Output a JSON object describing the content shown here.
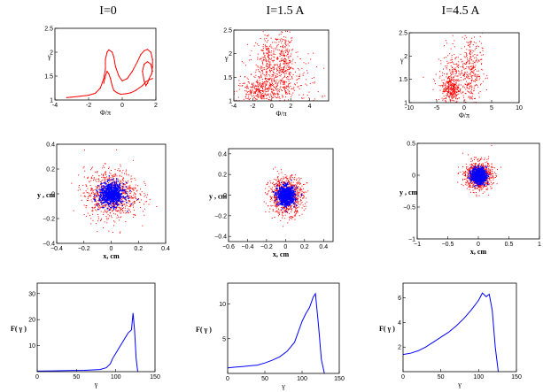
{
  "chart_data": [
    {
      "id": "phase-0",
      "type": "scatter",
      "title": "I=0",
      "xlabel": "Φ/π",
      "ylabel": "γ",
      "xlim": [
        -4,
        2
      ],
      "ylim": [
        1,
        2.5
      ],
      "xticks": [
        -4,
        -2,
        0,
        2
      ],
      "yticks": [
        1,
        1.5,
        2,
        2.5
      ],
      "xticklabels": [
        "-4",
        "-2",
        "0",
        "2"
      ],
      "yticklabels": [
        "1",
        "1.5",
        "2",
        "2.5"
      ],
      "color": "#ff0000",
      "series": [
        {
          "x": [
            -3.3,
            -3.0,
            -2.5,
            -2.0,
            -1.6,
            -1.3,
            -1.1,
            -1.0,
            -1.0,
            -0.9,
            -0.8,
            -0.6,
            -0.5,
            -0.4,
            -0.2,
            0.0,
            0.3,
            0.6,
            0.9,
            1.1,
            1.3,
            1.5,
            1.7,
            1.8,
            1.8,
            1.75,
            1.6,
            1.5,
            1.4,
            1.3,
            1.2,
            1.3,
            1.5,
            1.7,
            1.8
          ],
          "y": [
            1.05,
            1.06,
            1.08,
            1.1,
            1.14,
            1.25,
            1.45,
            1.65,
            1.85,
            2.0,
            2.05,
            2.0,
            1.9,
            1.7,
            1.5,
            1.4,
            1.45,
            1.6,
            1.8,
            1.95,
            2.03,
            2.06,
            2.0,
            1.85,
            1.7,
            1.55,
            1.45,
            1.35,
            1.3,
            1.4,
            1.6,
            1.75,
            1.8,
            1.75,
            1.6
          ]
        },
        {
          "x": [
            -1.1,
            -1.0,
            -0.9,
            -0.8,
            -0.7,
            -0.6,
            -0.5,
            -0.3,
            -0.1,
            0.2,
            0.5,
            0.8,
            1.0,
            1.2,
            1.4,
            1.6,
            1.8
          ],
          "y": [
            1.35,
            1.5,
            1.6,
            1.55,
            1.45,
            1.3,
            1.2,
            1.15,
            1.12,
            1.13,
            1.15,
            1.2,
            1.25,
            1.3,
            1.38,
            1.42,
            1.45
          ]
        }
      ]
    },
    {
      "id": "phase-1",
      "type": "scatter",
      "title": "I=1.5 A",
      "xlabel": "Φ/π",
      "ylabel": "γ",
      "xlim": [
        -4,
        6
      ],
      "ylim": [
        1,
        2.5
      ],
      "xticks": [
        -4,
        -2,
        0,
        2,
        4
      ],
      "yticks": [
        1,
        1.5,
        2,
        2.5
      ],
      "xticklabels": [
        "-4",
        "-2",
        "0",
        "2",
        "4"
      ],
      "yticklabels": [
        "1",
        "1.5",
        "2",
        "2.5"
      ],
      "color": "#ff0000",
      "clusters": [
        {
          "cx": -0.5,
          "cy": 1.8,
          "sx": 0.6,
          "sy": 0.35
        },
        {
          "cx": 1.3,
          "cy": 1.8,
          "sx": 0.5,
          "sy": 0.35
        },
        {
          "cx": -1.5,
          "cy": 1.2,
          "sx": 1.2,
          "sy": 0.12
        },
        {
          "cx": 1.0,
          "cy": 1.4,
          "sx": 2.0,
          "sy": 0.3
        }
      ]
    },
    {
      "id": "phase-2",
      "type": "scatter",
      "title": "I=4.5 A",
      "xlabel": "Φ/π",
      "ylabel": "γ",
      "xlim": [
        -10,
        10
      ],
      "ylim": [
        1,
        2.5
      ],
      "xticks": [
        -10,
        -5,
        0,
        5,
        10
      ],
      "yticks": [
        1,
        1.5,
        2,
        2.5
      ],
      "xticklabels": [
        "-10",
        "-5",
        "0",
        "5",
        "10"
      ],
      "yticklabels": [
        "1",
        "1.5",
        "2",
        "2.5"
      ],
      "color": "#ff0000",
      "clusters": [
        {
          "cx": -1.5,
          "cy": 1.5,
          "sx": 1.6,
          "sy": 0.35
        },
        {
          "cx": 1.2,
          "cy": 1.7,
          "sx": 1.0,
          "sy": 0.4
        },
        {
          "cx": -2.5,
          "cy": 1.3,
          "sx": 0.8,
          "sy": 0.15
        }
      ]
    },
    {
      "id": "xy-0",
      "type": "scatter",
      "xlabel": "x, cm",
      "ylabel": "y , cm",
      "xlim": [
        -0.4,
        0.4
      ],
      "ylim": [
        -0.4,
        0.4
      ],
      "xticks": [
        -0.4,
        -0.2,
        0,
        0.2,
        0.4
      ],
      "yticks": [
        -0.4,
        -0.2,
        0,
        0.2,
        0.4
      ],
      "xticklabels": [
        "−0.4",
        "−0.2",
        "0",
        "0.2",
        "0.4"
      ],
      "yticklabels": [
        "−0.4",
        "−0.2",
        "0",
        "0.2",
        "0.4"
      ],
      "outer": {
        "sigma": 0.1,
        "color": "#ff0000"
      },
      "core": {
        "sigma": 0.045,
        "color": "#0000ff"
      }
    },
    {
      "id": "xy-1",
      "type": "scatter",
      "xlabel": "x, cm",
      "ylabel": "y , cm",
      "xlim": [
        -0.6,
        0.5
      ],
      "ylim": [
        -0.45,
        0.45
      ],
      "xticks": [
        -0.6,
        -0.4,
        -0.2,
        0,
        0.2,
        0.4
      ],
      "yticks": [
        -0.4,
        -0.2,
        0,
        0.2,
        0.4
      ],
      "xticklabels": [
        "−0.6",
        "−0.4",
        "−0.2",
        "0",
        "0.2",
        "0.4"
      ],
      "yticklabels": [
        "−0.4",
        "−0.2",
        "0",
        "0.2",
        "0.4"
      ],
      "outer": {
        "sigma": 0.09,
        "color": "#ff0000"
      },
      "core": {
        "sigma": 0.045,
        "color": "#0000ff"
      }
    },
    {
      "id": "xy-2",
      "type": "scatter",
      "xlabel": "x, cm",
      "ylabel": "y , cm",
      "xlim": [
        -1,
        1
      ],
      "ylim": [
        -1,
        0.5
      ],
      "xticks": [
        -1,
        -0.5,
        0,
        0.5,
        1
      ],
      "yticks": [
        -1,
        -0.5,
        0,
        0.5
      ],
      "xticklabels": [
        "−1",
        "−0.5",
        "0",
        "0.5",
        "1"
      ],
      "yticklabels": [
        "−1",
        "−0.5",
        "0",
        "0.5"
      ],
      "outer": {
        "sigma": 0.11,
        "color": "#ff0000"
      },
      "core": {
        "sigma": 0.06,
        "color": "#0000ff"
      }
    },
    {
      "id": "dist-0",
      "type": "line",
      "xlabel": "γ",
      "ylabel": "F( γ )",
      "xlim": [
        0,
        150
      ],
      "ylim": [
        0,
        34
      ],
      "xticks": [
        0,
        50,
        100,
        150
      ],
      "yticks": [
        10,
        20,
        30
      ],
      "xticklabels": [
        "0",
        "50",
        "100",
        "150"
      ],
      "yticklabels": [
        "10",
        "20",
        "30"
      ],
      "color": "#0000ff",
      "x": [
        0,
        20,
        40,
        60,
        80,
        88,
        93,
        96,
        100,
        104,
        108,
        112,
        116,
        120,
        122,
        124,
        126,
        128
      ],
      "y": [
        0.2,
        0.3,
        0.4,
        0.5,
        0.8,
        1.5,
        3,
        5,
        7,
        9,
        11,
        13,
        15,
        16,
        22.5,
        16,
        5,
        0
      ]
    },
    {
      "id": "dist-1",
      "type": "line",
      "xlabel": "γ",
      "ylabel": "F( γ )",
      "xlim": [
        0,
        150
      ],
      "ylim": [
        0,
        13
      ],
      "xticks": [
        0,
        50,
        100,
        150
      ],
      "yticks": [
        5,
        10
      ],
      "xticklabels": [
        "0",
        "50",
        "100",
        "150"
      ],
      "yticklabels": [
        "5",
        "10"
      ],
      "color": "#0000ff",
      "x": [
        0,
        10,
        20,
        30,
        40,
        50,
        60,
        70,
        80,
        90,
        95,
        100,
        105,
        110,
        115,
        118,
        122,
        126,
        130
      ],
      "y": [
        0.8,
        0.9,
        1.0,
        1.1,
        1.2,
        1.5,
        1.9,
        2.4,
        3.2,
        4.5,
        6.0,
        7.5,
        8.6,
        9.5,
        11.0,
        11.5,
        7.0,
        2.0,
        0
      ]
    },
    {
      "id": "dist-2",
      "type": "line",
      "xlabel": "γ",
      "ylabel": "F( γ )",
      "xlim": [
        0,
        150
      ],
      "ylim": [
        0,
        7.2
      ],
      "xticks": [
        0,
        50,
        100,
        150
      ],
      "yticks": [
        2,
        4,
        6
      ],
      "xticklabels": [
        "0",
        "50",
        "100",
        "150"
      ],
      "yticklabels": [
        "2",
        "4",
        "6"
      ],
      "color": "#0000ff",
      "x": [
        0,
        10,
        20,
        30,
        40,
        50,
        60,
        70,
        80,
        90,
        100,
        105,
        110,
        114,
        118,
        122,
        126
      ],
      "y": [
        1.4,
        1.5,
        1.7,
        2.0,
        2.4,
        2.8,
        3.2,
        3.7,
        4.3,
        5.0,
        5.8,
        6.4,
        6.1,
        6.3,
        5.0,
        2.0,
        0
      ]
    }
  ]
}
